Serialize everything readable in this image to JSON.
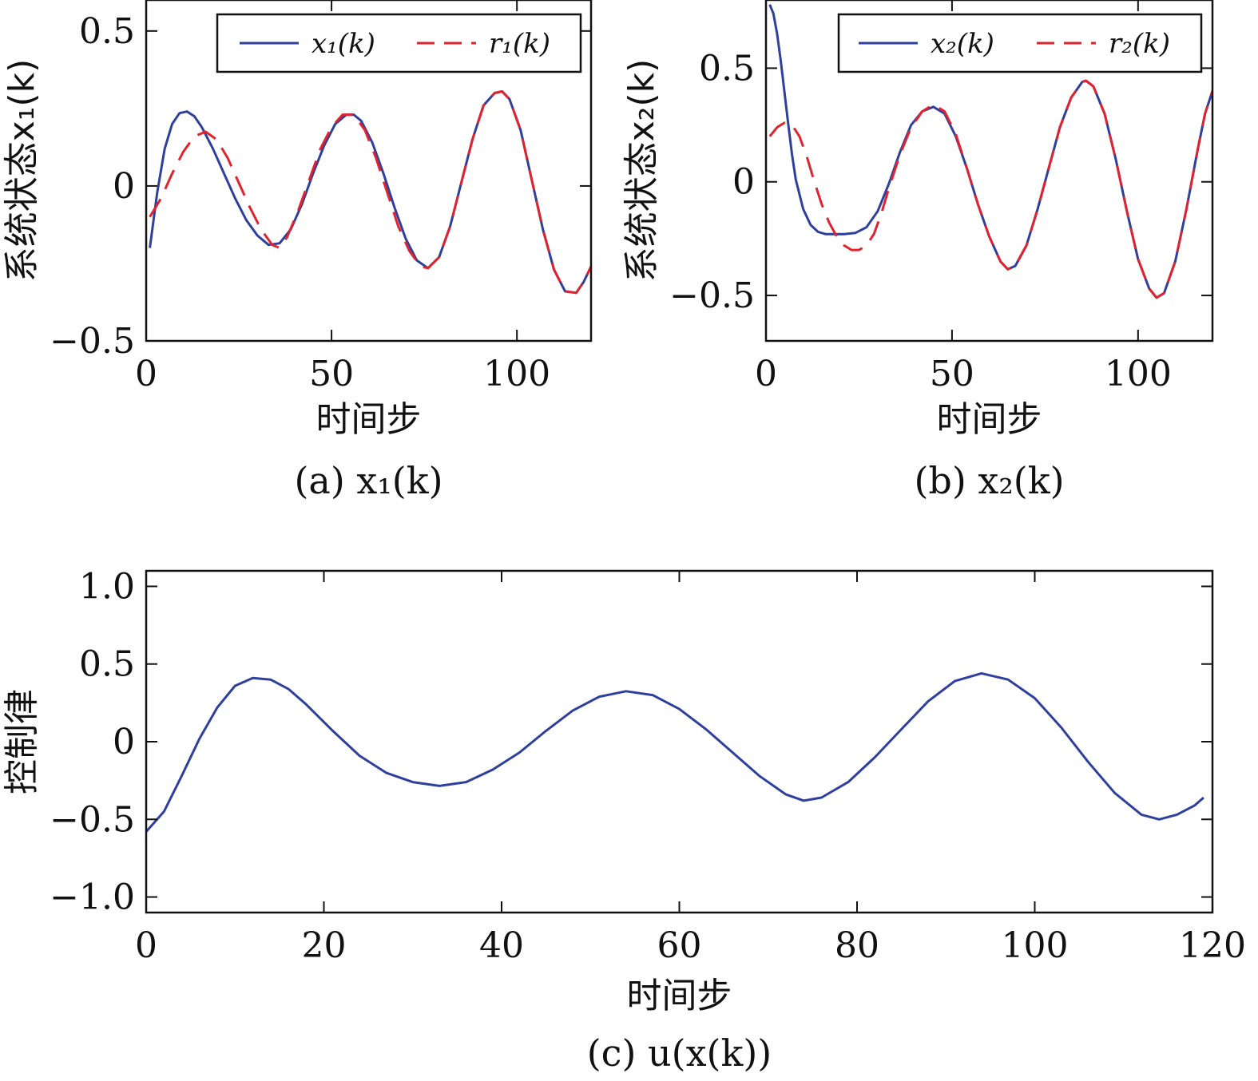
{
  "colors": {
    "x_series": "#2E3F9E",
    "r_series": "#E0232E"
  },
  "chart_data": [
    {
      "id": "a",
      "type": "line",
      "caption": "(a) x₁(k)",
      "xlabel": "时间步",
      "ylabel": "系统状态x₁(k)",
      "xlim": [
        0,
        120
      ],
      "ylim": [
        -0.5,
        0.6
      ],
      "xticks": [
        0,
        50,
        100
      ],
      "yticks": [
        -0.5,
        0,
        0.5
      ],
      "yticklabels": [
        "−0.5",
        "0",
        "0.5"
      ],
      "legend": {
        "position": "top-right",
        "entries": [
          "x₁(k)",
          "r₁(k)"
        ]
      },
      "grid": false,
      "series": [
        {
          "name": "x₁(k)",
          "style": "solid",
          "color": "#2E3F9E",
          "x": [
            1,
            3,
            5,
            7,
            9,
            11,
            13,
            15,
            18,
            21,
            24,
            27,
            30,
            33,
            36,
            39,
            42,
            45,
            48,
            51,
            54,
            56,
            58,
            61,
            64,
            67,
            70,
            73,
            76,
            79,
            82,
            85,
            88,
            91,
            94,
            96,
            98,
            101,
            104,
            107,
            110,
            113,
            116,
            118,
            120
          ],
          "y": [
            -0.2,
            -0.02,
            0.12,
            0.2,
            0.235,
            0.24,
            0.225,
            0.19,
            0.12,
            0.04,
            -0.04,
            -0.11,
            -0.16,
            -0.19,
            -0.185,
            -0.14,
            -0.06,
            0.04,
            0.13,
            0.2,
            0.23,
            0.23,
            0.21,
            0.14,
            0.04,
            -0.07,
            -0.17,
            -0.24,
            -0.265,
            -0.23,
            -0.13,
            0.01,
            0.15,
            0.26,
            0.3,
            0.305,
            0.28,
            0.18,
            0.02,
            -0.14,
            -0.27,
            -0.34,
            -0.345,
            -0.31,
            -0.26
          ]
        },
        {
          "name": "r₁(k)",
          "style": "dashed",
          "color": "#E0232E",
          "x": [
            1,
            4,
            7,
            10,
            13,
            16,
            19,
            22,
            25,
            28,
            31,
            34,
            36,
            38,
            41,
            44,
            47,
            50,
            53,
            56,
            59,
            62,
            65,
            68,
            71,
            74,
            76,
            79,
            82,
            85,
            88,
            91,
            94,
            96,
            98,
            101,
            104,
            107,
            110,
            113,
            116,
            118,
            120
          ],
          "y": [
            -0.1,
            -0.04,
            0.04,
            0.11,
            0.16,
            0.175,
            0.15,
            0.09,
            0.01,
            -0.07,
            -0.14,
            -0.19,
            -0.2,
            -0.165,
            -0.08,
            0.02,
            0.12,
            0.19,
            0.23,
            0.23,
            0.18,
            0.09,
            -0.02,
            -0.13,
            -0.21,
            -0.26,
            -0.265,
            -0.23,
            -0.13,
            0.01,
            0.15,
            0.26,
            0.3,
            0.305,
            0.28,
            0.18,
            0.02,
            -0.14,
            -0.27,
            -0.34,
            -0.345,
            -0.31,
            -0.26
          ]
        }
      ]
    },
    {
      "id": "b",
      "type": "line",
      "caption": "(b) x₂(k)",
      "xlabel": "时间步",
      "ylabel": "系统状态x₂(k)",
      "xlim": [
        0,
        120
      ],
      "ylim": [
        -0.7,
        0.8
      ],
      "xticks": [
        0,
        50,
        100
      ],
      "yticks": [
        -0.5,
        0,
        0.5
      ],
      "yticklabels": [
        "−0.5",
        "0",
        "0.5"
      ],
      "legend": {
        "position": "top-right",
        "entries": [
          "x₂(k)",
          "r₂(k)"
        ]
      },
      "grid": false,
      "series": [
        {
          "name": "x₂(k)",
          "style": "solid",
          "color": "#2E3F9E",
          "x": [
            1,
            2,
            3,
            4,
            5,
            6,
            7,
            8,
            10,
            12,
            14,
            16,
            18,
            21,
            24,
            27,
            30,
            33,
            36,
            39,
            42,
            45,
            48,
            51,
            54,
            57,
            60,
            63,
            65,
            67,
            70,
            73,
            76,
            79,
            82,
            85,
            86,
            88,
            91,
            94,
            97,
            100,
            103,
            105,
            107,
            110,
            113,
            116,
            118,
            120
          ],
          "y": [
            0.78,
            0.74,
            0.65,
            0.53,
            0.39,
            0.25,
            0.12,
            0.01,
            -0.12,
            -0.19,
            -0.22,
            -0.23,
            -0.23,
            -0.23,
            -0.225,
            -0.2,
            -0.13,
            -0.01,
            0.13,
            0.25,
            0.31,
            0.33,
            0.3,
            0.2,
            0.06,
            -0.1,
            -0.24,
            -0.35,
            -0.385,
            -0.37,
            -0.28,
            -0.12,
            0.06,
            0.24,
            0.37,
            0.44,
            0.445,
            0.42,
            0.3,
            0.1,
            -0.13,
            -0.34,
            -0.47,
            -0.51,
            -0.49,
            -0.35,
            -0.12,
            0.14,
            0.3,
            0.4
          ]
        },
        {
          "name": "r₂(k)",
          "style": "dashed",
          "color": "#E0232E",
          "x": [
            1,
            3,
            5,
            7,
            9,
            11,
            13,
            15,
            17,
            19,
            21,
            23,
            25,
            27,
            29,
            31,
            33,
            36,
            39,
            42,
            45,
            48,
            51,
            54,
            57,
            60,
            63,
            65,
            67,
            70,
            73,
            76,
            79,
            82,
            85,
            86,
            88,
            91,
            94,
            97,
            100,
            103,
            105,
            107,
            110,
            113,
            116,
            118,
            120
          ],
          "y": [
            0.2,
            0.24,
            0.26,
            0.25,
            0.2,
            0.11,
            0.0,
            -0.1,
            -0.18,
            -0.24,
            -0.28,
            -0.3,
            -0.3,
            -0.28,
            -0.23,
            -0.14,
            -0.03,
            0.12,
            0.24,
            0.31,
            0.34,
            0.31,
            0.21,
            0.06,
            -0.1,
            -0.24,
            -0.35,
            -0.385,
            -0.37,
            -0.28,
            -0.12,
            0.06,
            0.24,
            0.37,
            0.44,
            0.445,
            0.42,
            0.3,
            0.1,
            -0.13,
            -0.34,
            -0.47,
            -0.51,
            -0.49,
            -0.35,
            -0.12,
            0.14,
            0.3,
            0.4
          ]
        }
      ]
    },
    {
      "id": "c",
      "type": "line",
      "caption": "(c) u(x(k))",
      "xlabel": "时间步",
      "ylabel": "控制律",
      "xlim": [
        0,
        120
      ],
      "ylim": [
        -1.1,
        1.1
      ],
      "xticks": [
        0,
        20,
        40,
        60,
        80,
        100,
        120
      ],
      "yticks": [
        -1.0,
        -0.5,
        0,
        0.5,
        1.0
      ],
      "yticklabels": [
        "−1.0",
        "−0.5",
        "0",
        "0.5",
        "1.0"
      ],
      "grid": false,
      "series": [
        {
          "color": "#2E3F9E",
          "style": "solid",
          "x": [
            0,
            2,
            4,
            6,
            8,
            10,
            12,
            14,
            16,
            18,
            21,
            24,
            27,
            30,
            33,
            36,
            39,
            42,
            45,
            48,
            51,
            54,
            57,
            60,
            63,
            66,
            69,
            72,
            74,
            76,
            79,
            82,
            85,
            88,
            91,
            94,
            97,
            100,
            103,
            106,
            109,
            112,
            114,
            116,
            118,
            119
          ],
          "y": [
            -0.58,
            -0.45,
            -0.22,
            0.02,
            0.22,
            0.36,
            0.41,
            0.4,
            0.34,
            0.24,
            0.07,
            -0.09,
            -0.2,
            -0.26,
            -0.285,
            -0.26,
            -0.18,
            -0.07,
            0.07,
            0.2,
            0.29,
            0.325,
            0.3,
            0.21,
            0.08,
            -0.07,
            -0.22,
            -0.34,
            -0.38,
            -0.36,
            -0.26,
            -0.1,
            0.08,
            0.26,
            0.39,
            0.44,
            0.4,
            0.28,
            0.09,
            -0.13,
            -0.33,
            -0.47,
            -0.5,
            -0.47,
            -0.41,
            -0.36
          ]
        }
      ]
    }
  ]
}
